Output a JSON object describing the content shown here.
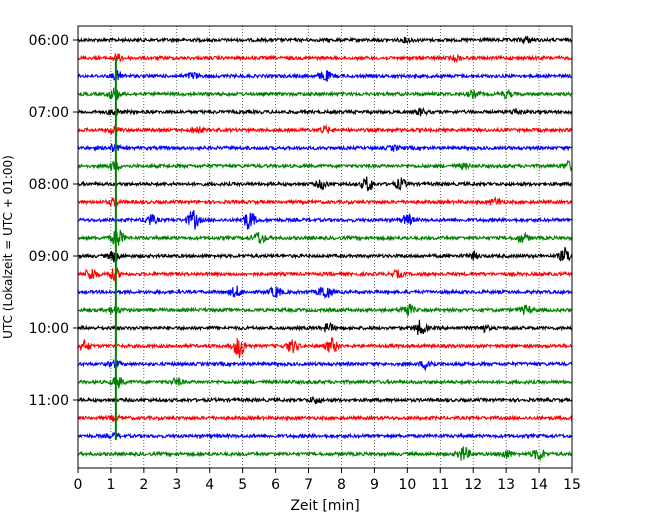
{
  "chart_data": {
    "type": "line",
    "title": "",
    "xlabel": "Zeit  [min]",
    "ylabel": "UTC (Lokalzeit = UTC + 01:00)",
    "xlim": [
      0,
      15
    ],
    "x_ticks": [
      0,
      1,
      2,
      3,
      4,
      5,
      6,
      7,
      8,
      9,
      10,
      11,
      12,
      13,
      14,
      15
    ],
    "y_ticks": [
      "06:00",
      "07:00",
      "08:00",
      "09:00",
      "10:00",
      "11:00"
    ],
    "start_time": "06:00",
    "row_interval_minutes": 15,
    "grid": {
      "vertical": true,
      "style": "dotted"
    },
    "color_cycle": [
      "#000000",
      "#ff0000",
      "#0000ff",
      "#008000"
    ],
    "traces": [
      {
        "time": "06:00",
        "color": "#000000",
        "bursts": [
          {
            "x": 10.0,
            "amp": 2
          },
          {
            "x": 13.6,
            "amp": 3
          }
        ]
      },
      {
        "time": "06:15",
        "color": "#ff0000",
        "bursts": [
          {
            "x": 1.2,
            "amp": 3
          },
          {
            "x": 11.5,
            "amp": 2
          }
        ]
      },
      {
        "time": "06:30",
        "color": "#0000ff",
        "bursts": [
          {
            "x": 1.2,
            "amp": 4
          },
          {
            "x": 7.5,
            "amp": 5
          },
          {
            "x": 3.5,
            "amp": 3
          }
        ]
      },
      {
        "time": "06:45",
        "color": "#008000",
        "bursts": [
          {
            "x": 1.1,
            "amp": 6
          },
          {
            "x": 12.0,
            "amp": 3
          },
          {
            "x": 13.0,
            "amp": 3
          }
        ]
      },
      {
        "time": "07:00",
        "color": "#000000",
        "bursts": [
          {
            "x": 1.1,
            "amp": 3
          },
          {
            "x": 10.4,
            "amp": 3
          },
          {
            "x": 13.3,
            "amp": 3
          }
        ]
      },
      {
        "time": "07:15",
        "color": "#ff0000",
        "bursts": [
          {
            "x": 1.1,
            "amp": 3
          },
          {
            "x": 3.6,
            "amp": 3
          },
          {
            "x": 7.5,
            "amp": 3
          }
        ]
      },
      {
        "time": "07:30",
        "color": "#0000ff",
        "bursts": [
          {
            "x": 1.1,
            "amp": 3
          },
          {
            "x": 9.6,
            "amp": 2
          }
        ]
      },
      {
        "time": "07:45",
        "color": "#008000",
        "bursts": [
          {
            "x": 1.1,
            "amp": 4
          },
          {
            "x": 14.9,
            "amp": 4
          },
          {
            "x": 11.7,
            "amp": 2
          }
        ]
      },
      {
        "time": "08:00",
        "color": "#000000",
        "bursts": [
          {
            "x": 8.8,
            "amp": 7
          },
          {
            "x": 9.8,
            "amp": 5
          },
          {
            "x": 7.4,
            "amp": 4
          }
        ]
      },
      {
        "time": "08:15",
        "color": "#ff0000",
        "bursts": [
          {
            "x": 1.1,
            "amp": 3
          },
          {
            "x": 12.7,
            "amp": 3
          }
        ]
      },
      {
        "time": "08:30",
        "color": "#0000ff",
        "bursts": [
          {
            "x": 3.5,
            "amp": 9
          },
          {
            "x": 5.2,
            "amp": 9
          },
          {
            "x": 2.2,
            "amp": 5
          },
          {
            "x": 10.0,
            "amp": 5
          }
        ]
      },
      {
        "time": "08:45",
        "color": "#008000",
        "bursts": [
          {
            "x": 1.2,
            "amp": 9
          },
          {
            "x": 5.5,
            "amp": 6
          },
          {
            "x": 13.5,
            "amp": 4
          }
        ]
      },
      {
        "time": "09:00",
        "color": "#000000",
        "bursts": [
          {
            "x": 1.1,
            "amp": 5
          },
          {
            "x": 14.8,
            "amp": 7
          },
          {
            "x": 12.0,
            "amp": 3
          }
        ]
      },
      {
        "time": "09:15",
        "color": "#ff0000",
        "bursts": [
          {
            "x": 0.4,
            "amp": 6
          },
          {
            "x": 1.1,
            "amp": 5
          },
          {
            "x": 9.7,
            "amp": 3
          }
        ]
      },
      {
        "time": "09:30",
        "color": "#0000ff",
        "bursts": [
          {
            "x": 7.5,
            "amp": 7
          },
          {
            "x": 4.8,
            "amp": 5
          },
          {
            "x": 6.0,
            "amp": 5
          }
        ]
      },
      {
        "time": "09:45",
        "color": "#008000",
        "bursts": [
          {
            "x": 1.1,
            "amp": 4
          },
          {
            "x": 10.0,
            "amp": 6
          },
          {
            "x": 13.6,
            "amp": 4
          }
        ]
      },
      {
        "time": "10:00",
        "color": "#000000",
        "bursts": [
          {
            "x": 10.4,
            "amp": 7
          },
          {
            "x": 7.6,
            "amp": 4
          },
          {
            "x": 12.3,
            "amp": 3
          }
        ]
      },
      {
        "time": "10:15",
        "color": "#ff0000",
        "bursts": [
          {
            "x": 4.9,
            "amp": 11
          },
          {
            "x": 7.7,
            "amp": 7
          },
          {
            "x": 6.5,
            "amp": 6
          },
          {
            "x": 0.2,
            "amp": 5
          }
        ]
      },
      {
        "time": "10:30",
        "color": "#0000ff",
        "bursts": [
          {
            "x": 10.6,
            "amp": 5
          },
          {
            "x": 1.1,
            "amp": 3
          }
        ]
      },
      {
        "time": "10:45",
        "color": "#008000",
        "bursts": [
          {
            "x": 1.2,
            "amp": 5
          },
          {
            "x": 3.0,
            "amp": 3
          }
        ]
      },
      {
        "time": "11:00",
        "color": "#000000",
        "bursts": [
          {
            "x": 7.2,
            "amp": 3
          }
        ]
      },
      {
        "time": "11:15",
        "color": "#ff0000",
        "bursts": [
          {
            "x": 1.1,
            "amp": 2
          }
        ]
      },
      {
        "time": "11:30",
        "color": "#0000ff",
        "bursts": [
          {
            "x": 1.1,
            "amp": 2
          }
        ]
      },
      {
        "time": "11:45",
        "color": "#008000",
        "bursts": [
          {
            "x": 11.7,
            "amp": 7
          },
          {
            "x": 14.0,
            "amp": 6
          },
          {
            "x": 13.0,
            "amp": 4
          }
        ]
      }
    ],
    "event_line": {
      "x": 1.15,
      "color": "#008000",
      "from": "06:30",
      "to": "11:45"
    }
  }
}
